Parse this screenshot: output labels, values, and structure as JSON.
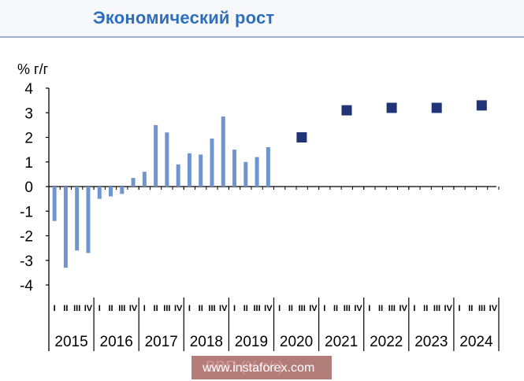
{
  "chart_data": {
    "type": "bar",
    "title": "Экономический рост",
    "ylabel": "% г/г",
    "ylim": [
      -4,
      4
    ],
    "yticks": [
      "4",
      "3",
      "2",
      "1",
      "0",
      "-1",
      "-2",
      "-3",
      "-4"
    ],
    "grid": false,
    "quarterly_actual": {
      "x": [
        "2015 Q1",
        "2015 Q2",
        "2015 Q3",
        "2015 Q4",
        "2016 Q1",
        "2016 Q2",
        "2016 Q3",
        "2016 Q4",
        "2017 Q1",
        "2017 Q2",
        "2017 Q3",
        "2017 Q4",
        "2018 Q1",
        "2018 Q2",
        "2018 Q3",
        "2018 Q4",
        "2019 Q1",
        "2019 Q2",
        "2019 Q3",
        "2019 Q4"
      ],
      "values": [
        -1.4,
        -3.3,
        -2.6,
        -2.7,
        -0.5,
        -0.4,
        -0.3,
        0.35,
        0.6,
        2.5,
        2.2,
        0.9,
        1.35,
        1.3,
        1.95,
        2.85,
        1.5,
        1.0,
        1.2,
        1.6
      ],
      "color": "#6f95d0"
    },
    "annual_forecast": {
      "x": [
        "2020",
        "2021",
        "2022",
        "2023",
        "2024"
      ],
      "values": [
        2.0,
        3.1,
        3.2,
        3.2,
        3.3
      ],
      "color": "#1f3577"
    },
    "year_labels": [
      "2015",
      "2016",
      "2017",
      "2018",
      "2019",
      "2020",
      "2021",
      "2022",
      "2023",
      "2024"
    ],
    "quarter_marks": [
      "I",
      "II",
      "III",
      "IV"
    ]
  },
  "watermark": {
    "text": "www.instaforex.com",
    "hidden_text": "ВВП (% г/г)",
    "color": "#a66663"
  }
}
